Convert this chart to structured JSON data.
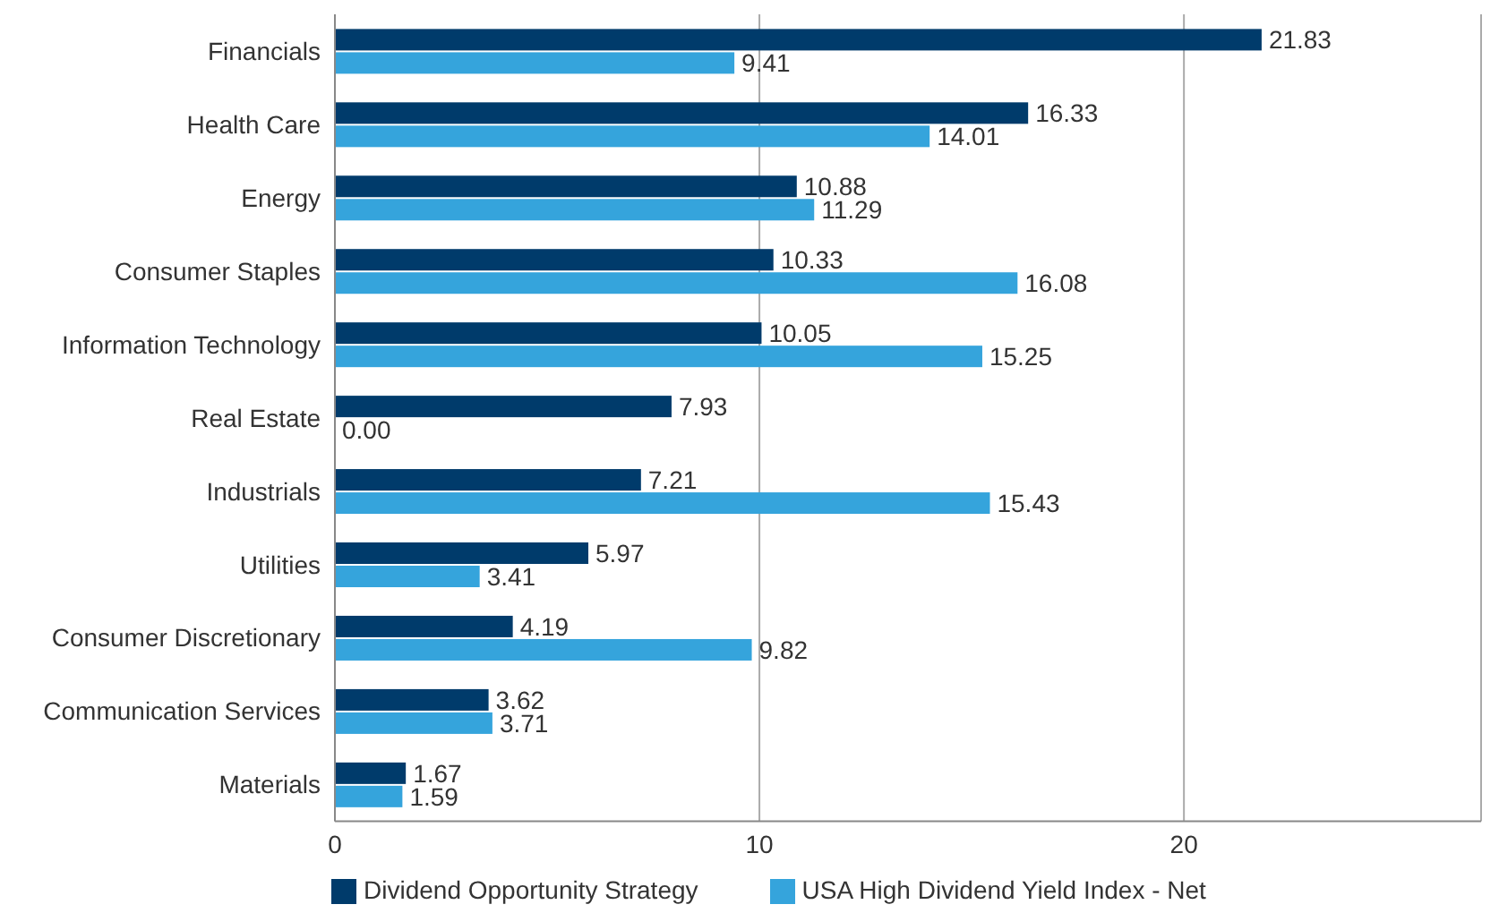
{
  "chart_data": {
    "type": "bar",
    "orientation": "horizontal",
    "categories": [
      "Financials",
      "Health Care",
      "Energy",
      "Consumer Staples",
      "Information Technology",
      "Real Estate",
      "Industrials",
      "Utilities",
      "Consumer Discretionary",
      "Communication Services",
      "Materials"
    ],
    "series": [
      {
        "name": "Dividend Opportunity Strategy",
        "color": "#003b6b",
        "values": [
          21.83,
          16.33,
          10.88,
          10.33,
          10.05,
          7.93,
          7.21,
          5.97,
          4.19,
          3.62,
          1.67
        ],
        "value_labels": [
          "21.83",
          "16.33",
          "10.88",
          "10.33",
          "10.05",
          "7.93",
          "7.21",
          "5.97",
          "4.19",
          "3.62",
          "1.67"
        ]
      },
      {
        "name": "USA High Dividend Yield Index - Net",
        "color": "#35a4dc",
        "values": [
          9.41,
          14.01,
          11.29,
          16.08,
          15.25,
          0,
          15.43,
          3.41,
          9.82,
          3.71,
          1.59
        ],
        "value_labels": [
          "9.41",
          "14.01",
          "11.29",
          "16.08",
          "15.25",
          "0.00",
          "15.43",
          "3.41",
          "9.82",
          "3.71",
          "1.59"
        ]
      }
    ],
    "xlim": [
      0,
      27
    ],
    "xticks": [
      0,
      10,
      20
    ],
    "grid": "x",
    "legend": "bottom left"
  }
}
